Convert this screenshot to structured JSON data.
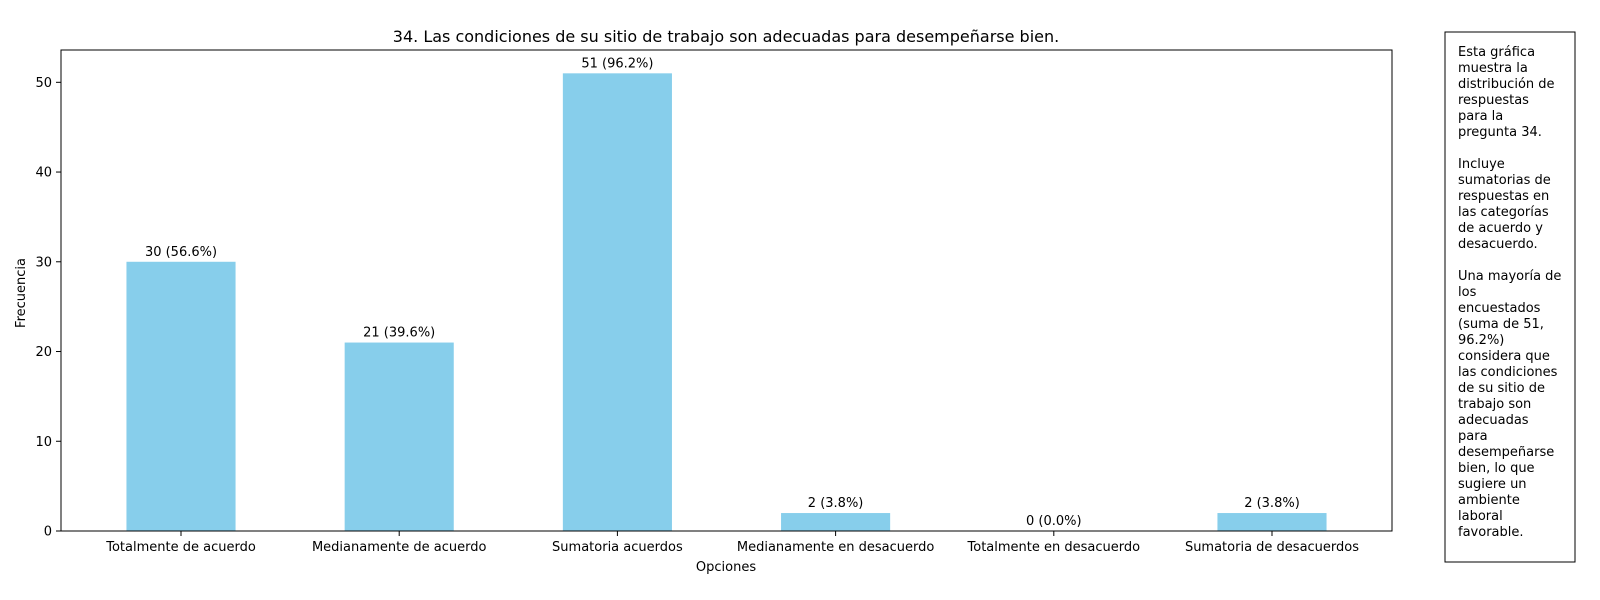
{
  "chart_data": {
    "type": "bar",
    "title": "34. Las condiciones de su sitio de trabajo son adecuadas para desempeñarse bien.",
    "xlabel": "Opciones",
    "ylabel": "Frecuencia",
    "categories": [
      "Totalmente de acuerdo",
      "Medianamente de acuerdo",
      "Sumatoria acuerdos",
      "Medianamente en desacuerdo",
      "Totalmente en desacuerdo",
      "Sumatoria de desacuerdos"
    ],
    "values": [
      30,
      21,
      51,
      2,
      0,
      2
    ],
    "data_labels": [
      "30 (56.6%)",
      "21 (39.6%)",
      "51 (96.2%)",
      "2 (3.8%)",
      "0 (0.0%)",
      "2 (3.8%)"
    ],
    "ylim": [
      0,
      53.6
    ],
    "yticks": [
      0,
      10,
      20,
      30,
      40,
      50
    ],
    "bar_color": "#87ceeb",
    "grid": false,
    "legend": "none"
  },
  "side_note": {
    "lines": [
      "Esta gráfica",
      "muestra la",
      "distribución de",
      "respuestas",
      "para la",
      "pregunta 34.",
      "",
      "Incluye",
      "sumatorias de",
      "respuestas en",
      "las categorías",
      "de acuerdo y",
      "desacuerdo.",
      "",
      "Una mayoría de",
      "los",
      "encuestados",
      "(suma de 51,",
      "96.2%)",
      "considera que",
      "las condiciones",
      "de su sitio de",
      "trabajo son",
      "adecuadas",
      "para",
      "desempeñarse",
      "bien, lo que",
      "sugiere un",
      "ambiente",
      "laboral",
      "favorable."
    ]
  }
}
